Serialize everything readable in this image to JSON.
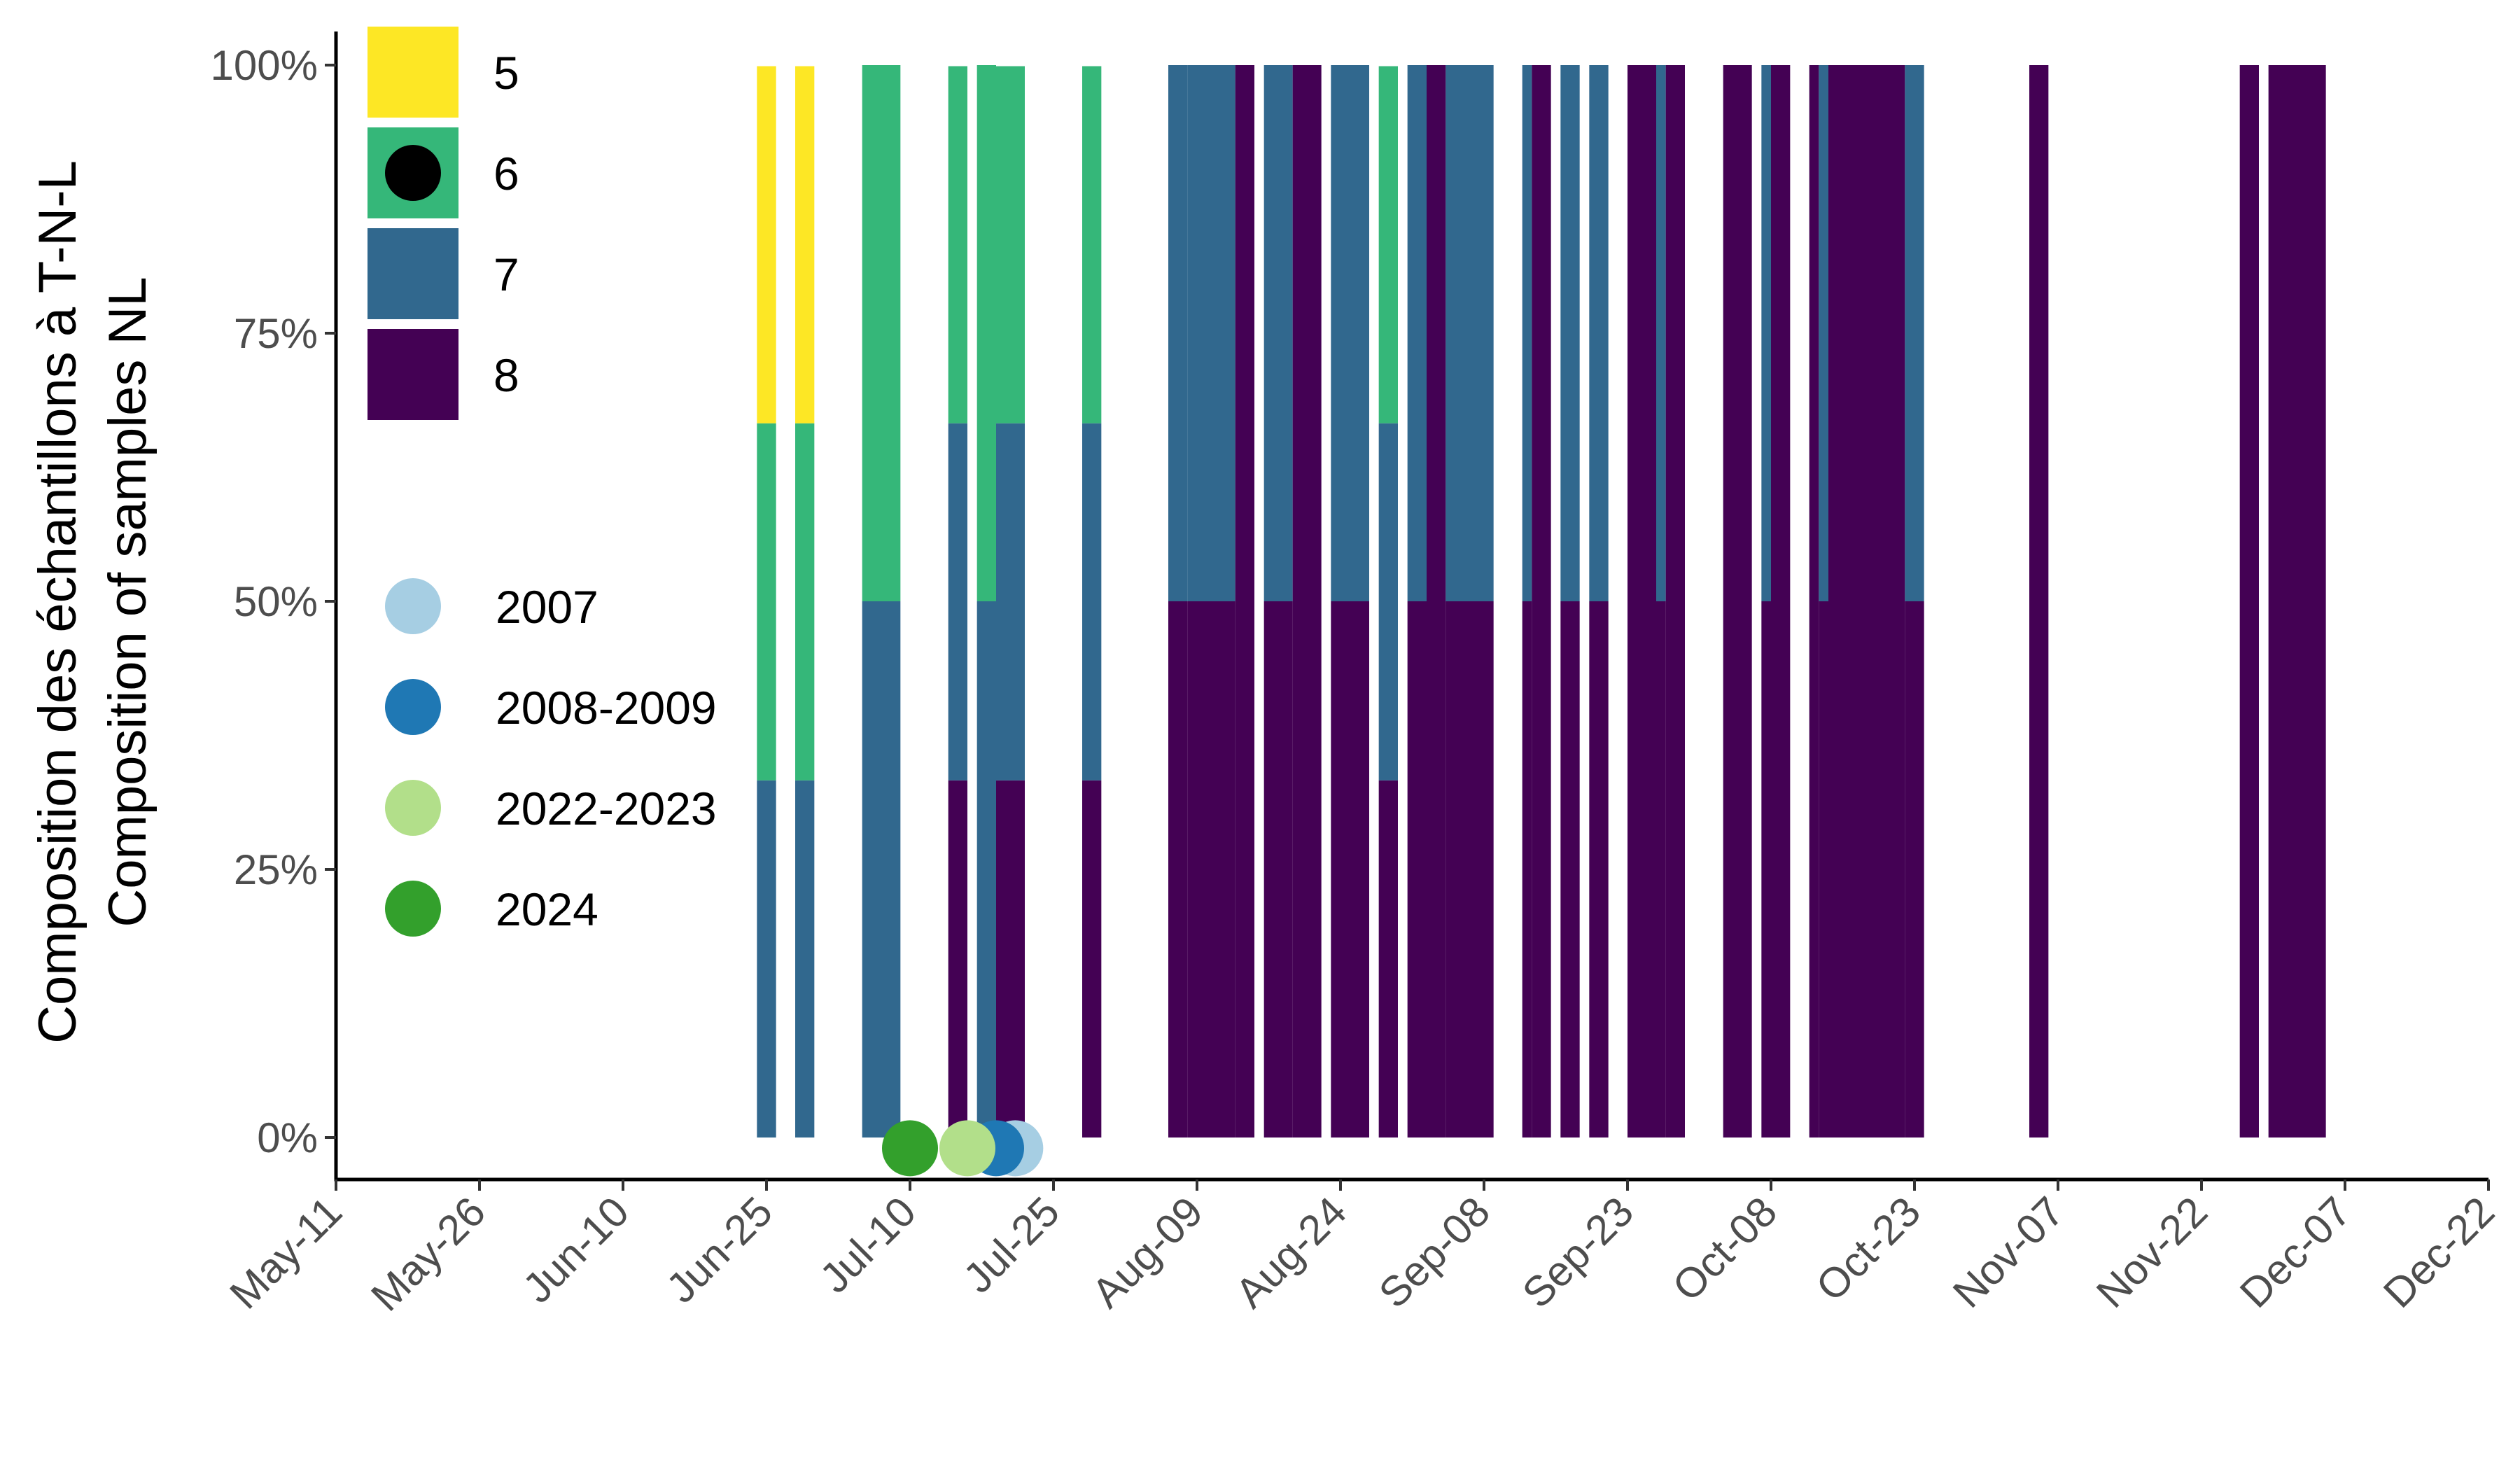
{
  "chart_data": {
    "type": "bar",
    "subtype": "stacked-100-percent-with-date-markers",
    "ylabel_lines": [
      "Composition des échantillons à T-N-L",
      "Composition of samples NL"
    ],
    "xlabel": "",
    "x_range": [
      "May-11",
      "Dec-22"
    ],
    "x_tick_labels": [
      "May-11",
      "May-26",
      "Jun-10",
      "Jun-25",
      "Jul-10",
      "Jul-25",
      "Aug-09",
      "Aug-24",
      "Sep-08",
      "Sep-23",
      "Oct-08",
      "Oct-23",
      "Nov-07",
      "Nov-22",
      "Dec-07",
      "Dec-22"
    ],
    "y_tick_labels": [
      "0%",
      "25%",
      "50%",
      "75%",
      "100%"
    ],
    "y_ticks": [
      0,
      25,
      50,
      75,
      100
    ],
    "ylim": [
      0,
      100
    ],
    "grid": false,
    "legend_position": "top-left inside",
    "categories": [
      "5",
      "6",
      "7",
      "8"
    ],
    "category_colors": {
      "5": "#fde725",
      "6": "#35b779",
      "7": "#31688e",
      "8": "#440154"
    },
    "bars": [
      {
        "start": "Jun-24",
        "end": "Jun-26",
        "pct": {
          "5": 33.3,
          "6": 33.3,
          "7": 33.3,
          "8": 0
        }
      },
      {
        "start": "Jun-28",
        "end": "Jun-30",
        "pct": {
          "5": 33.3,
          "6": 33.3,
          "7": 33.3,
          "8": 0
        }
      },
      {
        "start": "Jul-05",
        "end": "Jul-09",
        "pct": {
          "5": 0,
          "6": 50,
          "7": 50,
          "8": 0
        }
      },
      {
        "start": "Jul-14",
        "end": "Jul-16",
        "pct": {
          "5": 0,
          "6": 33.3,
          "7": 33.3,
          "8": 33.3
        }
      },
      {
        "start": "Jul-17",
        "end": "Jul-19",
        "pct": {
          "5": 0,
          "6": 50,
          "7": 50,
          "8": 0
        }
      },
      {
        "start": "Jul-19",
        "end": "Jul-22",
        "pct": {
          "5": 0,
          "6": 33.3,
          "7": 33.3,
          "8": 33.3
        }
      },
      {
        "start": "Jul-28",
        "end": "Jul-30",
        "pct": {
          "5": 0,
          "6": 33.3,
          "7": 33.3,
          "8": 33.3
        }
      },
      {
        "start": "Aug-06",
        "end": "Aug-08",
        "pct": {
          "5": 0,
          "6": 0,
          "7": 50,
          "8": 50
        }
      },
      {
        "start": "Aug-08",
        "end": "Aug-13",
        "pct": {
          "5": 0,
          "6": 0,
          "7": 50,
          "8": 50
        }
      },
      {
        "start": "Aug-13",
        "end": "Aug-15",
        "pct": {
          "5": 0,
          "6": 0,
          "7": 0,
          "8": 100
        }
      },
      {
        "start": "Aug-16",
        "end": "Aug-19",
        "pct": {
          "5": 0,
          "6": 0,
          "7": 50,
          "8": 50
        }
      },
      {
        "start": "Aug-19",
        "end": "Aug-22",
        "pct": {
          "5": 0,
          "6": 0,
          "7": 0,
          "8": 100
        }
      },
      {
        "start": "Aug-23",
        "end": "Aug-27",
        "pct": {
          "5": 0,
          "6": 0,
          "7": 50,
          "8": 50
        }
      },
      {
        "start": "Aug-28",
        "end": "Aug-30",
        "pct": {
          "5": 0,
          "6": 33.3,
          "7": 33.3,
          "8": 33.3
        }
      },
      {
        "start": "Aug-31",
        "end": "Sep-02",
        "pct": {
          "5": 0,
          "6": 0,
          "7": 50,
          "8": 50
        }
      },
      {
        "start": "Sep-02",
        "end": "Sep-04",
        "pct": {
          "5": 0,
          "6": 0,
          "7": 0,
          "8": 100
        }
      },
      {
        "start": "Sep-04",
        "end": "Sep-09",
        "pct": {
          "5": 0,
          "6": 0,
          "7": 50,
          "8": 50
        }
      },
      {
        "start": "Sep-12",
        "end": "Sep-13",
        "pct": {
          "5": 0,
          "6": 0,
          "7": 50,
          "8": 50
        }
      },
      {
        "start": "Sep-13",
        "end": "Sep-15",
        "pct": {
          "5": 0,
          "6": 0,
          "7": 0,
          "8": 100
        }
      },
      {
        "start": "Sep-16",
        "end": "Sep-18",
        "pct": {
          "5": 0,
          "6": 0,
          "7": 50,
          "8": 50
        }
      },
      {
        "start": "Sep-19",
        "end": "Sep-21",
        "pct": {
          "5": 0,
          "6": 0,
          "7": 50,
          "8": 50
        }
      },
      {
        "start": "Sep-23",
        "end": "Sep-26",
        "pct": {
          "5": 0,
          "6": 0,
          "7": 0,
          "8": 100
        }
      },
      {
        "start": "Sep-26",
        "end": "Sep-27",
        "pct": {
          "5": 0,
          "6": 0,
          "7": 50,
          "8": 50
        }
      },
      {
        "start": "Sep-27",
        "end": "Sep-29",
        "pct": {
          "5": 0,
          "6": 0,
          "7": 0,
          "8": 100
        }
      },
      {
        "start": "Oct-03",
        "end": "Oct-06",
        "pct": {
          "5": 0,
          "6": 0,
          "7": 0,
          "8": 100
        }
      },
      {
        "start": "Oct-07",
        "end": "Oct-08",
        "pct": {
          "5": 0,
          "6": 0,
          "7": 50,
          "8": 50
        }
      },
      {
        "start": "Oct-08",
        "end": "Oct-10",
        "pct": {
          "5": 0,
          "6": 0,
          "7": 0,
          "8": 100
        }
      },
      {
        "start": "Oct-12",
        "end": "Oct-13",
        "pct": {
          "5": 0,
          "6": 0,
          "7": 0,
          "8": 100
        }
      },
      {
        "start": "Oct-13",
        "end": "Oct-14",
        "pct": {
          "5": 0,
          "6": 0,
          "7": 50,
          "8": 50
        }
      },
      {
        "start": "Oct-14",
        "end": "Oct-22",
        "pct": {
          "5": 0,
          "6": 0,
          "7": 0,
          "8": 100
        }
      },
      {
        "start": "Oct-22",
        "end": "Oct-24",
        "pct": {
          "5": 0,
          "6": 0,
          "7": 50,
          "8": 50
        }
      },
      {
        "start": "Nov-04",
        "end": "Nov-06",
        "pct": {
          "5": 0,
          "6": 0,
          "7": 0,
          "8": 100
        }
      },
      {
        "start": "Nov-26",
        "end": "Nov-28",
        "pct": {
          "5": 0,
          "6": 0,
          "7": 0,
          "8": 100
        }
      },
      {
        "start": "Nov-29",
        "end": "Dec-01",
        "pct": {
          "5": 0,
          "6": 0,
          "7": 0,
          "8": 100
        }
      },
      {
        "start": "Dec-01",
        "end": "Dec-05",
        "pct": {
          "5": 0,
          "6": 0,
          "7": 0,
          "8": 100
        }
      }
    ],
    "markers": [
      {
        "group": "2007",
        "date": "Jul-21",
        "y": -1,
        "color": "#a6cee3"
      },
      {
        "group": "2008-2009",
        "date": "Jul-19",
        "y": -1,
        "color": "#1f78b4"
      },
      {
        "group": "2022-2023",
        "date": "Jul-16",
        "y": -1,
        "color": "#b2df8a"
      },
      {
        "group": "2024",
        "date": "Jul-10",
        "y": -1,
        "color": "#33a02c"
      }
    ],
    "legend_categories": [
      {
        "label": "5",
        "color": "#fde725",
        "has_marker": false
      },
      {
        "label": "6",
        "color": "#35b779",
        "has_marker": true
      },
      {
        "label": "7",
        "color": "#31688e",
        "has_marker": false
      },
      {
        "label": "8",
        "color": "#440154",
        "has_marker": false
      }
    ],
    "legend_years": [
      {
        "label": "2007",
        "color": "#a6cee3"
      },
      {
        "label": "2008-2009",
        "color": "#1f78b4"
      },
      {
        "label": "2022-2023",
        "color": "#b2df8a"
      },
      {
        "label": "2024",
        "color": "#33a02c"
      }
    ]
  }
}
